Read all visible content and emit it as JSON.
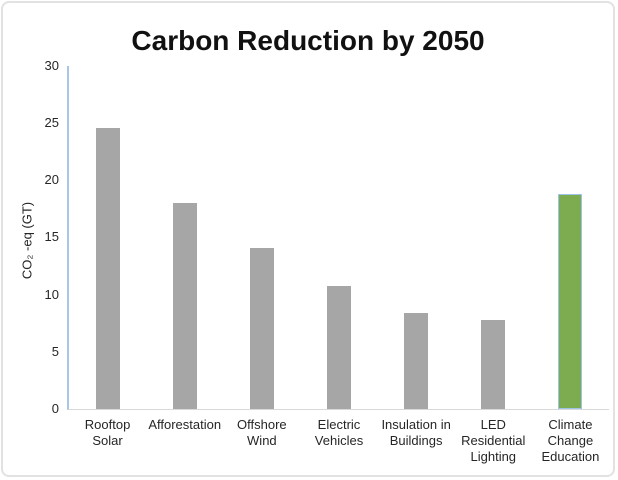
{
  "chart_data": {
    "type": "bar",
    "title": "Carbon Reduction by 2050",
    "ylabel": "CO₂ -eq (GT)",
    "xlabel": "",
    "ylim": [
      0,
      30
    ],
    "ytick_step": 5,
    "yticks": [
      "30",
      "25",
      "20",
      "15",
      "10",
      "5",
      "0"
    ],
    "grid": false,
    "legend": false,
    "categories": [
      "Rooftop\nSolar",
      "Afforestation",
      "Offshore\nWind",
      "Electric\nVehicles",
      "Insulation in\nBuildings",
      "LED\nResidential\nLighting",
      "Climate\nChange\nEducation"
    ],
    "values": [
      24.6,
      18.0,
      14.1,
      10.8,
      8.4,
      7.8,
      18.8
    ],
    "bar_colors": [
      "#a6a6a6",
      "#a6a6a6",
      "#a6a6a6",
      "#a6a6a6",
      "#a6a6a6",
      "#a6a6a6",
      "#7cab50"
    ],
    "highlight_index": 6,
    "highlight_border_color": "#9dc3e6",
    "colors": {
      "bar_gray": "#a6a6a6",
      "bar_green": "#7cab50",
      "y_axis_line": "#a9c6e8",
      "baseline": "#d9d9d9",
      "frame_border": "#e2e2e2",
      "text": "#262626",
      "title_text": "#111111"
    }
  }
}
